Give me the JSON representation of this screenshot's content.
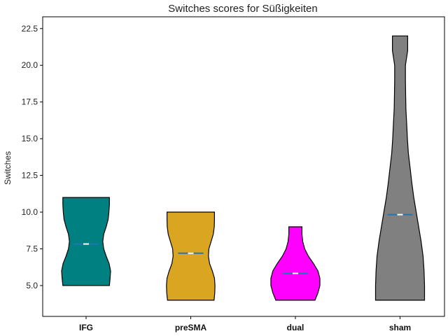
{
  "chart_data": {
    "type": "violin",
    "title": "Switches scores for Süßigkeiten",
    "xlabel": "",
    "ylabel": "Switches",
    "ylim": [
      2.9,
      23.3
    ],
    "yticks": [
      "5.0",
      "7.5",
      "10.0",
      "12.5",
      "15.0",
      "17.5",
      "20.0",
      "22.5"
    ],
    "categories": [
      "IFG",
      "preSMA",
      "dual",
      "sham"
    ],
    "grid": false,
    "series": [
      {
        "category": "IFG",
        "color": "#008080",
        "min": 5.0,
        "max": 11.0,
        "mean": 7.83,
        "median": 7.83,
        "density": [
          [
            5.0,
            0.95
          ],
          [
            5.5,
            0.98
          ],
          [
            6.0,
            1.0
          ],
          [
            6.5,
            0.94
          ],
          [
            7.0,
            0.82
          ],
          [
            7.5,
            0.72
          ],
          [
            8.0,
            0.68
          ],
          [
            8.5,
            0.72
          ],
          [
            9.0,
            0.82
          ],
          [
            9.5,
            0.9
          ],
          [
            10.0,
            0.93
          ],
          [
            10.5,
            0.95
          ],
          [
            11.0,
            0.95
          ]
        ]
      },
      {
        "category": "preSMA",
        "color": "#DAA520",
        "min": 4.0,
        "max": 10.0,
        "mean": 7.2,
        "median": 7.2,
        "density": [
          [
            4.0,
            0.95
          ],
          [
            4.5,
            0.98
          ],
          [
            5.0,
            0.99
          ],
          [
            5.5,
            0.97
          ],
          [
            6.0,
            0.88
          ],
          [
            6.5,
            0.77
          ],
          [
            7.0,
            0.72
          ],
          [
            7.5,
            0.74
          ],
          [
            8.0,
            0.83
          ],
          [
            8.5,
            0.92
          ],
          [
            9.0,
            0.96
          ],
          [
            9.5,
            0.97
          ],
          [
            10.0,
            0.97
          ]
        ]
      },
      {
        "category": "dual",
        "color": "#FF00FF",
        "min": 4.0,
        "max": 9.0,
        "mean": 5.83,
        "median": 5.83,
        "density": [
          [
            4.0,
            0.8
          ],
          [
            4.5,
            0.92
          ],
          [
            5.0,
            1.0
          ],
          [
            5.5,
            1.0
          ],
          [
            6.0,
            0.92
          ],
          [
            6.5,
            0.74
          ],
          [
            7.0,
            0.53
          ],
          [
            7.5,
            0.38
          ],
          [
            8.0,
            0.3
          ],
          [
            8.5,
            0.27
          ],
          [
            9.0,
            0.27
          ]
        ]
      },
      {
        "category": "sham",
        "color": "#808080",
        "min": 4.0,
        "max": 22.0,
        "mean": 9.83,
        "median": 9.83,
        "density": [
          [
            4.0,
            1.0
          ],
          [
            5.0,
            1.0
          ],
          [
            6.0,
            0.98
          ],
          [
            7.0,
            0.94
          ],
          [
            8.0,
            0.86
          ],
          [
            9.0,
            0.76
          ],
          [
            10.0,
            0.66
          ],
          [
            11.0,
            0.56
          ],
          [
            12.0,
            0.48
          ],
          [
            13.0,
            0.41
          ],
          [
            14.0,
            0.34
          ],
          [
            15.0,
            0.3
          ],
          [
            16.0,
            0.27
          ],
          [
            17.0,
            0.24
          ],
          [
            18.0,
            0.23
          ],
          [
            19.0,
            0.22
          ],
          [
            20.0,
            0.22
          ],
          [
            21.0,
            0.31
          ],
          [
            22.0,
            0.31
          ]
        ]
      }
    ]
  }
}
